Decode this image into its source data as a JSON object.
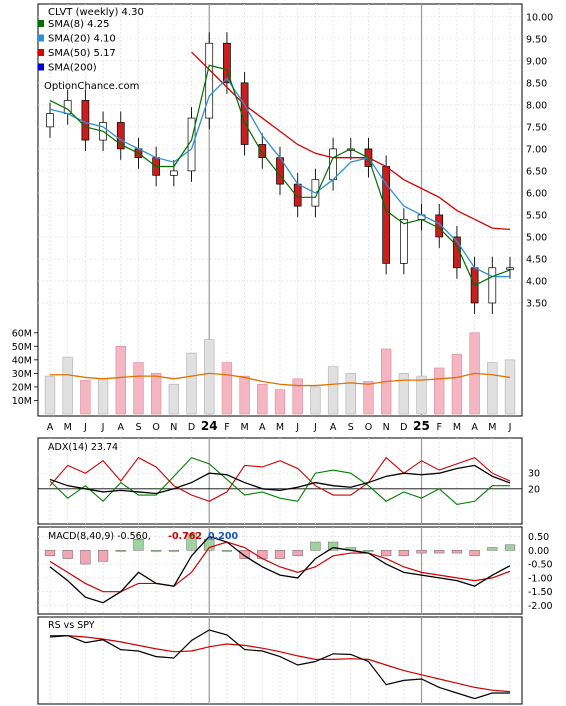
{
  "chart_data": [
    {
      "panel": "price",
      "type": "candlestick",
      "title": "CLVT (weekly) 4.30",
      "watermark": "OptionChance.com",
      "legend": [
        {
          "label": "SMA(8) 4.25",
          "color": "#007000"
        },
        {
          "label": "SMA(20) 4.10",
          "color": "#2f8fd6"
        },
        {
          "label": "SMA(50) 5.17",
          "color": "#d80000"
        },
        {
          "label": "SMA(200)",
          "color": "#0000dd"
        }
      ],
      "legend_placement": "top-left",
      "ylim": [
        3.0,
        10.2
      ],
      "y_ticks": [
        "3.50",
        "4.00",
        "4.50",
        "5.00",
        "5.50",
        "6.00",
        "6.50",
        "7.00",
        "7.50",
        "8.00",
        "8.50",
        "9.00",
        "9.50",
        "10.00"
      ],
      "x_ticks": [
        "A",
        "M",
        "J",
        "J",
        "A",
        "S",
        "O",
        "N",
        "D",
        "24",
        "F",
        "M",
        "A",
        "M",
        "J",
        "J",
        "A",
        "S",
        "O",
        "N",
        "D",
        "25",
        "F",
        "M",
        "A",
        "M",
        "J"
      ],
      "x": [
        "2023-04",
        "2023-05",
        "2023-06",
        "2023-07",
        "2023-08",
        "2023-09",
        "2023-10",
        "2023-11",
        "2023-12",
        "2024-01",
        "2024-02",
        "2024-03",
        "2024-04",
        "2024-05",
        "2024-06",
        "2024-07",
        "2024-08",
        "2024-09",
        "2024-10",
        "2024-11",
        "2024-12",
        "2025-01",
        "2025-02",
        "2025-03",
        "2025-04",
        "2025-05",
        "2025-06"
      ],
      "close": [
        7.8,
        8.1,
        7.2,
        7.6,
        7.0,
        6.8,
        6.4,
        6.5,
        7.7,
        9.4,
        8.5,
        7.1,
        6.8,
        6.2,
        5.7,
        6.3,
        7.0,
        7.0,
        6.6,
        4.4,
        5.4,
        5.5,
        5.0,
        4.3,
        3.5,
        4.3,
        4.3
      ],
      "sma8": [
        8.1,
        7.9,
        7.5,
        7.4,
        7.1,
        6.9,
        6.6,
        6.6,
        7.2,
        8.9,
        8.8,
        7.6,
        6.9,
        6.4,
        5.9,
        5.9,
        6.8,
        7.0,
        6.8,
        5.6,
        5.3,
        5.4,
        5.2,
        4.8,
        3.9,
        4.1,
        4.25
      ],
      "sma20": [
        7.9,
        7.8,
        7.6,
        7.5,
        7.2,
        7.0,
        6.8,
        6.7,
        7.0,
        8.2,
        8.6,
        8.0,
        7.3,
        6.8,
        6.2,
        6.0,
        6.3,
        6.7,
        6.8,
        6.2,
        5.7,
        5.5,
        5.3,
        4.9,
        4.3,
        4.1,
        4.1
      ],
      "sma50": [
        null,
        null,
        null,
        null,
        null,
        null,
        null,
        null,
        9.2,
        8.8,
        8.4,
        8.0,
        7.7,
        7.4,
        7.1,
        6.9,
        6.8,
        6.8,
        6.8,
        6.6,
        6.3,
        6.1,
        5.9,
        5.6,
        5.4,
        5.2,
        5.17
      ],
      "volume_ticks": [
        "10M",
        "20M",
        "30M",
        "40M",
        "50M",
        "60M"
      ],
      "volume_ylim": [
        0,
        65
      ],
      "volume": [
        28,
        42,
        25,
        26,
        50,
        38,
        30,
        22,
        45,
        55,
        38,
        28,
        22,
        18,
        26,
        20,
        35,
        30,
        24,
        48,
        30,
        28,
        34,
        44,
        60,
        38,
        40
      ],
      "volume_avg": [
        29,
        29,
        27,
        26,
        27,
        28,
        28,
        26,
        28,
        30,
        29,
        27,
        24,
        22,
        21,
        21,
        22,
        23,
        22,
        24,
        25,
        25,
        26,
        27,
        30,
        29,
        27
      ]
    },
    {
      "panel": "adx",
      "type": "line",
      "title": "ADX(14) 23.74",
      "ylim": [
        0,
        50
      ],
      "y_ticks": [
        "20",
        "30"
      ],
      "series": [
        {
          "role": "adx",
          "color": "#000000",
          "values": [
            26,
            22,
            20,
            18,
            19,
            18,
            17,
            20,
            24,
            30,
            29,
            24,
            20,
            19,
            21,
            24,
            22,
            21,
            24,
            28,
            30,
            29,
            30,
            33,
            35,
            28,
            23.74
          ]
        },
        {
          "role": "di-minus",
          "color": "#d00000",
          "values": [
            22,
            35,
            30,
            38,
            25,
            40,
            34,
            22,
            16,
            12,
            18,
            35,
            34,
            38,
            33,
            22,
            16,
            16,
            24,
            40,
            30,
            38,
            32,
            36,
            40,
            30,
            25
          ]
        },
        {
          "role": "di-plus",
          "color": "#008000",
          "values": [
            25,
            14,
            22,
            12,
            24,
            16,
            16,
            28,
            40,
            36,
            26,
            16,
            18,
            14,
            12,
            30,
            32,
            30,
            22,
            12,
            18,
            14,
            20,
            10,
            12,
            22,
            22
          ]
        }
      ]
    },
    {
      "panel": "macd",
      "type": "line",
      "title": "MACD(8,40,9) -0.560,",
      "values_shown": [
        {
          "text": "-0.762",
          "color": "#cc0000"
        },
        {
          "text": "0.200",
          "color": "#1a4fbf"
        }
      ],
      "ylim": [
        -2.2,
        0.7
      ],
      "y_ticks": [
        "0.50",
        "0.00",
        "-0.50",
        "-1.00",
        "-1.50",
        "-2.00"
      ],
      "series": [
        {
          "role": "macd",
          "color": "#000000",
          "values": [
            -0.6,
            -1.1,
            -1.7,
            -1.9,
            -1.5,
            -0.8,
            -1.2,
            -1.3,
            -0.2,
            0.5,
            0.3,
            -0.2,
            -0.6,
            -0.9,
            -1.0,
            -0.3,
            0.1,
            0.0,
            -0.1,
            -0.5,
            -0.8,
            -0.9,
            -1.0,
            -1.1,
            -1.3,
            -0.9,
            -0.56
          ]
        },
        {
          "role": "signal",
          "color": "#d00000",
          "values": [
            -0.4,
            -0.8,
            -1.2,
            -1.5,
            -1.5,
            -1.2,
            -1.2,
            -1.3,
            -0.8,
            0.1,
            0.3,
            0.1,
            -0.3,
            -0.6,
            -0.8,
            -0.6,
            -0.2,
            -0.1,
            -0.1,
            -0.3,
            -0.6,
            -0.8,
            -0.9,
            -1.0,
            -1.1,
            -1.0,
            -0.762
          ]
        },
        {
          "role": "histogram",
          "color": "#777777",
          "values": [
            -0.2,
            -0.3,
            -0.5,
            -0.4,
            0.0,
            0.4,
            0.0,
            0.0,
            0.6,
            0.4,
            0.0,
            -0.3,
            -0.3,
            -0.3,
            -0.2,
            0.3,
            0.3,
            0.1,
            0.0,
            -0.2,
            -0.2,
            -0.1,
            -0.1,
            -0.1,
            -0.2,
            0.1,
            0.2
          ]
        }
      ]
    },
    {
      "panel": "rs",
      "type": "line",
      "title": "RS vs SPY",
      "series": [
        {
          "role": "rs",
          "color": "#000000",
          "values": [
            0.9,
            0.92,
            0.82,
            0.86,
            0.72,
            0.7,
            0.62,
            0.6,
            0.85,
            1.0,
            0.93,
            0.72,
            0.7,
            0.62,
            0.5,
            0.55,
            0.66,
            0.65,
            0.55,
            0.22,
            0.28,
            0.3,
            0.18,
            0.1,
            0.02,
            0.1,
            0.1
          ]
        },
        {
          "role": "rs-avg",
          "color": "#d00000",
          "values": [
            0.92,
            0.92,
            0.9,
            0.87,
            0.83,
            0.78,
            0.73,
            0.69,
            0.7,
            0.76,
            0.8,
            0.78,
            0.74,
            0.69,
            0.63,
            0.58,
            0.58,
            0.59,
            0.58,
            0.5,
            0.42,
            0.36,
            0.3,
            0.24,
            0.18,
            0.14,
            0.12
          ]
        }
      ]
    }
  ]
}
